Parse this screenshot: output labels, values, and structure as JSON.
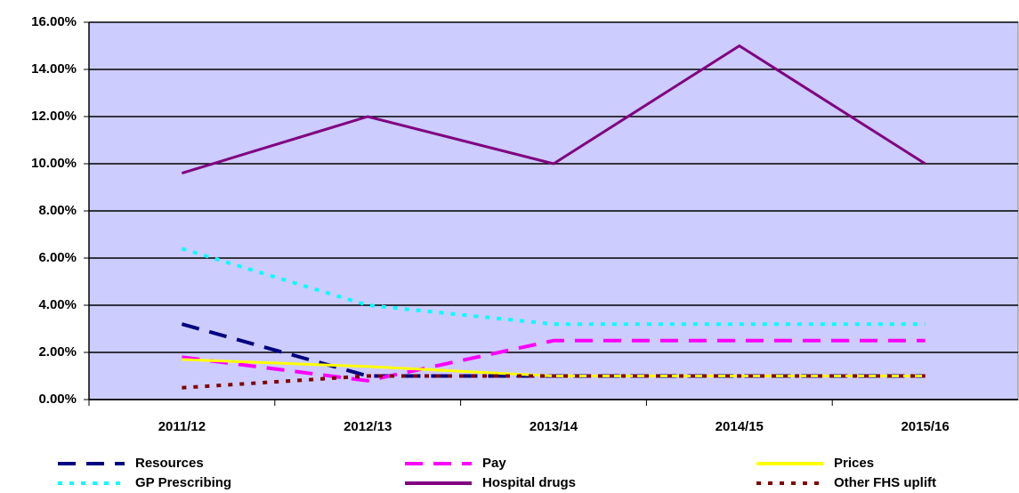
{
  "chart_data": {
    "type": "line",
    "categories": [
      "2011/12",
      "2012/13",
      "2013/14",
      "2014/15",
      "2015/16"
    ],
    "series": [
      {
        "name": "Resources",
        "color": "#000080",
        "style": "dashed",
        "values": [
          3.2,
          1.0,
          1.0,
          1.0,
          1.0
        ]
      },
      {
        "name": "Pay",
        "color": "#ff00ff",
        "style": "dashed",
        "values": [
          1.8,
          0.8,
          2.5,
          2.5,
          2.5
        ]
      },
      {
        "name": "Prices",
        "color": "#ffff00",
        "style": "solid",
        "values": [
          1.7,
          1.4,
          1.0,
          1.0,
          1.0
        ]
      },
      {
        "name": "GP Prescribing",
        "color": "#00ffff",
        "style": "dotted",
        "values": [
          6.4,
          4.0,
          3.2,
          3.2,
          3.2
        ]
      },
      {
        "name": "Hospital drugs",
        "color": "#800080",
        "style": "solid",
        "values": [
          9.6,
          12.0,
          10.0,
          15.0,
          10.0
        ]
      },
      {
        "name": "Other FHS uplift",
        "color": "#800000",
        "style": "dotted",
        "values": [
          0.5,
          1.0,
          1.0,
          1.0,
          1.0
        ]
      }
    ],
    "ylim": [
      0,
      16
    ],
    "yticks": [
      {
        "value": 0,
        "label": "0.00%"
      },
      {
        "value": 2,
        "label": "2.00%"
      },
      {
        "value": 4,
        "label": "4.00%"
      },
      {
        "value": 6,
        "label": "6.00%"
      },
      {
        "value": 8,
        "label": "8.00%"
      },
      {
        "value": 10,
        "label": "10.00%"
      },
      {
        "value": 12,
        "label": "12.00%"
      },
      {
        "value": 14,
        "label": "14.00%"
      },
      {
        "value": 16,
        "label": "16.00%"
      }
    ],
    "grid": true,
    "background": "#ccccff",
    "legend": "bottom"
  }
}
